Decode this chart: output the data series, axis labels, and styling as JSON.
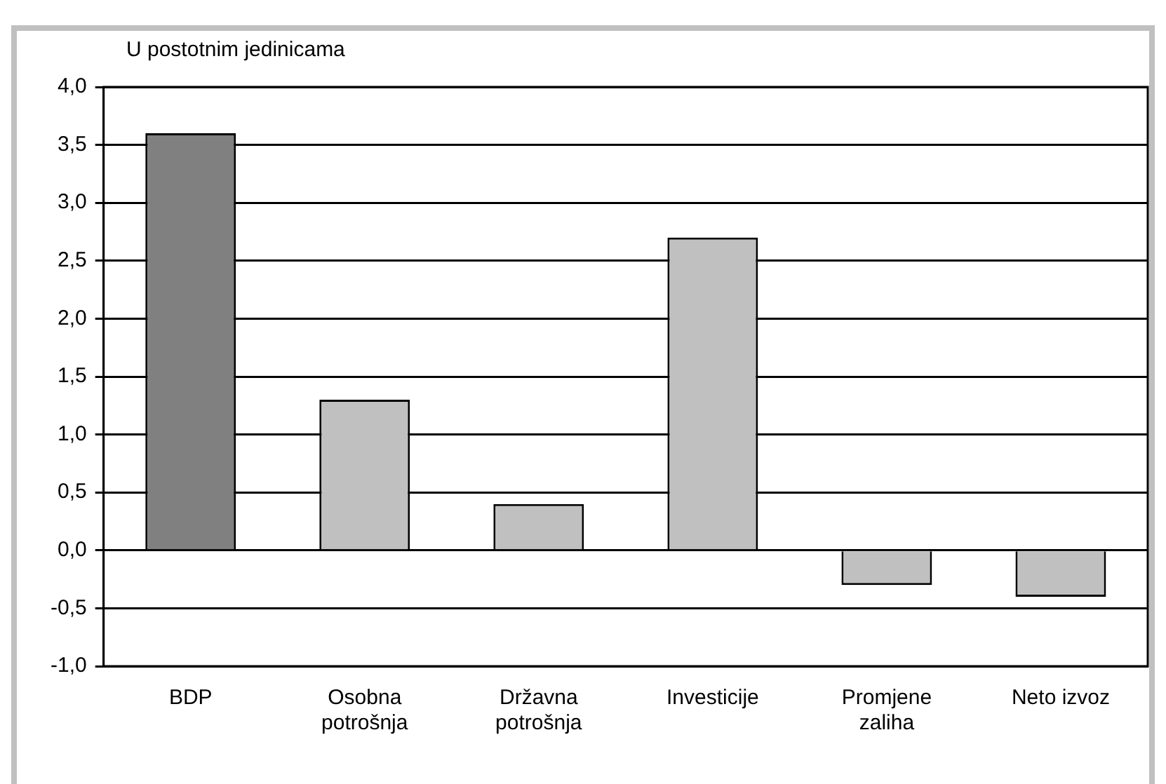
{
  "chart_data": {
    "type": "bar",
    "ylabel": "U postotnim jedinicama",
    "categories": [
      "BDP",
      "Osobna\npotrošnja",
      "Državna\npotrošnja",
      "Investicije",
      "Promjene\nzaliha",
      "Neto izvoz"
    ],
    "values": [
      3.6,
      1.3,
      0.4,
      2.7,
      -0.3,
      -0.4
    ],
    "colors": [
      "#808080",
      "#c0c0c0",
      "#c0c0c0",
      "#c0c0c0",
      "#c0c0c0",
      "#c0c0c0"
    ],
    "ylim": [
      -1,
      4
    ],
    "yticks": [
      {
        "value": -1,
        "label": "-1,0"
      },
      {
        "value": -0.5,
        "label": "-0,5"
      },
      {
        "value": 0,
        "label": "0,0"
      },
      {
        "value": 0.5,
        "label": "0,5"
      },
      {
        "value": 1,
        "label": "1,0"
      },
      {
        "value": 1.5,
        "label": "1,5"
      },
      {
        "value": 2,
        "label": "2,0"
      },
      {
        "value": 2.5,
        "label": "2,5"
      },
      {
        "value": 3,
        "label": "3,0"
      },
      {
        "value": 3.5,
        "label": "3,5"
      },
      {
        "value": 4,
        "label": "4,0"
      }
    ],
    "grid": "y",
    "legend": false
  }
}
